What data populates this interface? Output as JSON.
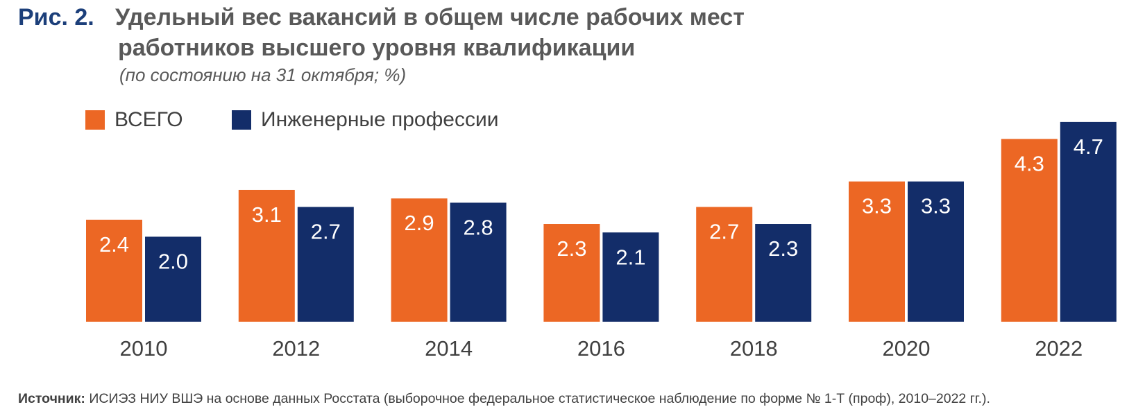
{
  "title": {
    "figure_label": "Рис. 2.",
    "line1": "Удельный вес вакансий в общем числе рабочих мест",
    "line2": "работников высшего уровня квалификации",
    "subtitle": "(по состоянию на 31 октября; %)"
  },
  "source": {
    "label": "Источник:",
    "text": " ИСИЭЗ НИУ ВШЭ на основе данных Росстата (выборочное федеральное статистическое наблюдение по форме № 1-Т (проф), 2010–2022 гг.)."
  },
  "chart_data": {
    "type": "bar",
    "title": "Удельный вес вакансий в общем числе рабочих мест работников высшего уровня квалификации",
    "subtitle": "(по состоянию на 31 октября; %)",
    "categories": [
      "2010",
      "2012",
      "2014",
      "2016",
      "2018",
      "2020",
      "2022"
    ],
    "series": [
      {
        "name": "ВСЕГО",
        "color": "#ec6724",
        "values": [
          2.4,
          3.1,
          2.9,
          2.3,
          2.7,
          3.3,
          4.3
        ],
        "labels": [
          "2.4",
          "3.1",
          "2.9",
          "2.3",
          "2.7",
          "3.3",
          "4.3"
        ]
      },
      {
        "name": "Инженерные профессии",
        "color": "#132d69",
        "values": [
          2.0,
          2.7,
          2.8,
          2.1,
          2.3,
          3.3,
          4.7
        ],
        "labels": [
          "2.0",
          "2.7",
          "2.8",
          "2.1",
          "2.3",
          "3.3",
          "4.7"
        ]
      }
    ],
    "ylim": [
      0,
      4.7
    ],
    "grid": false,
    "legend_position": "top-left",
    "data_labels": "inside-top"
  }
}
